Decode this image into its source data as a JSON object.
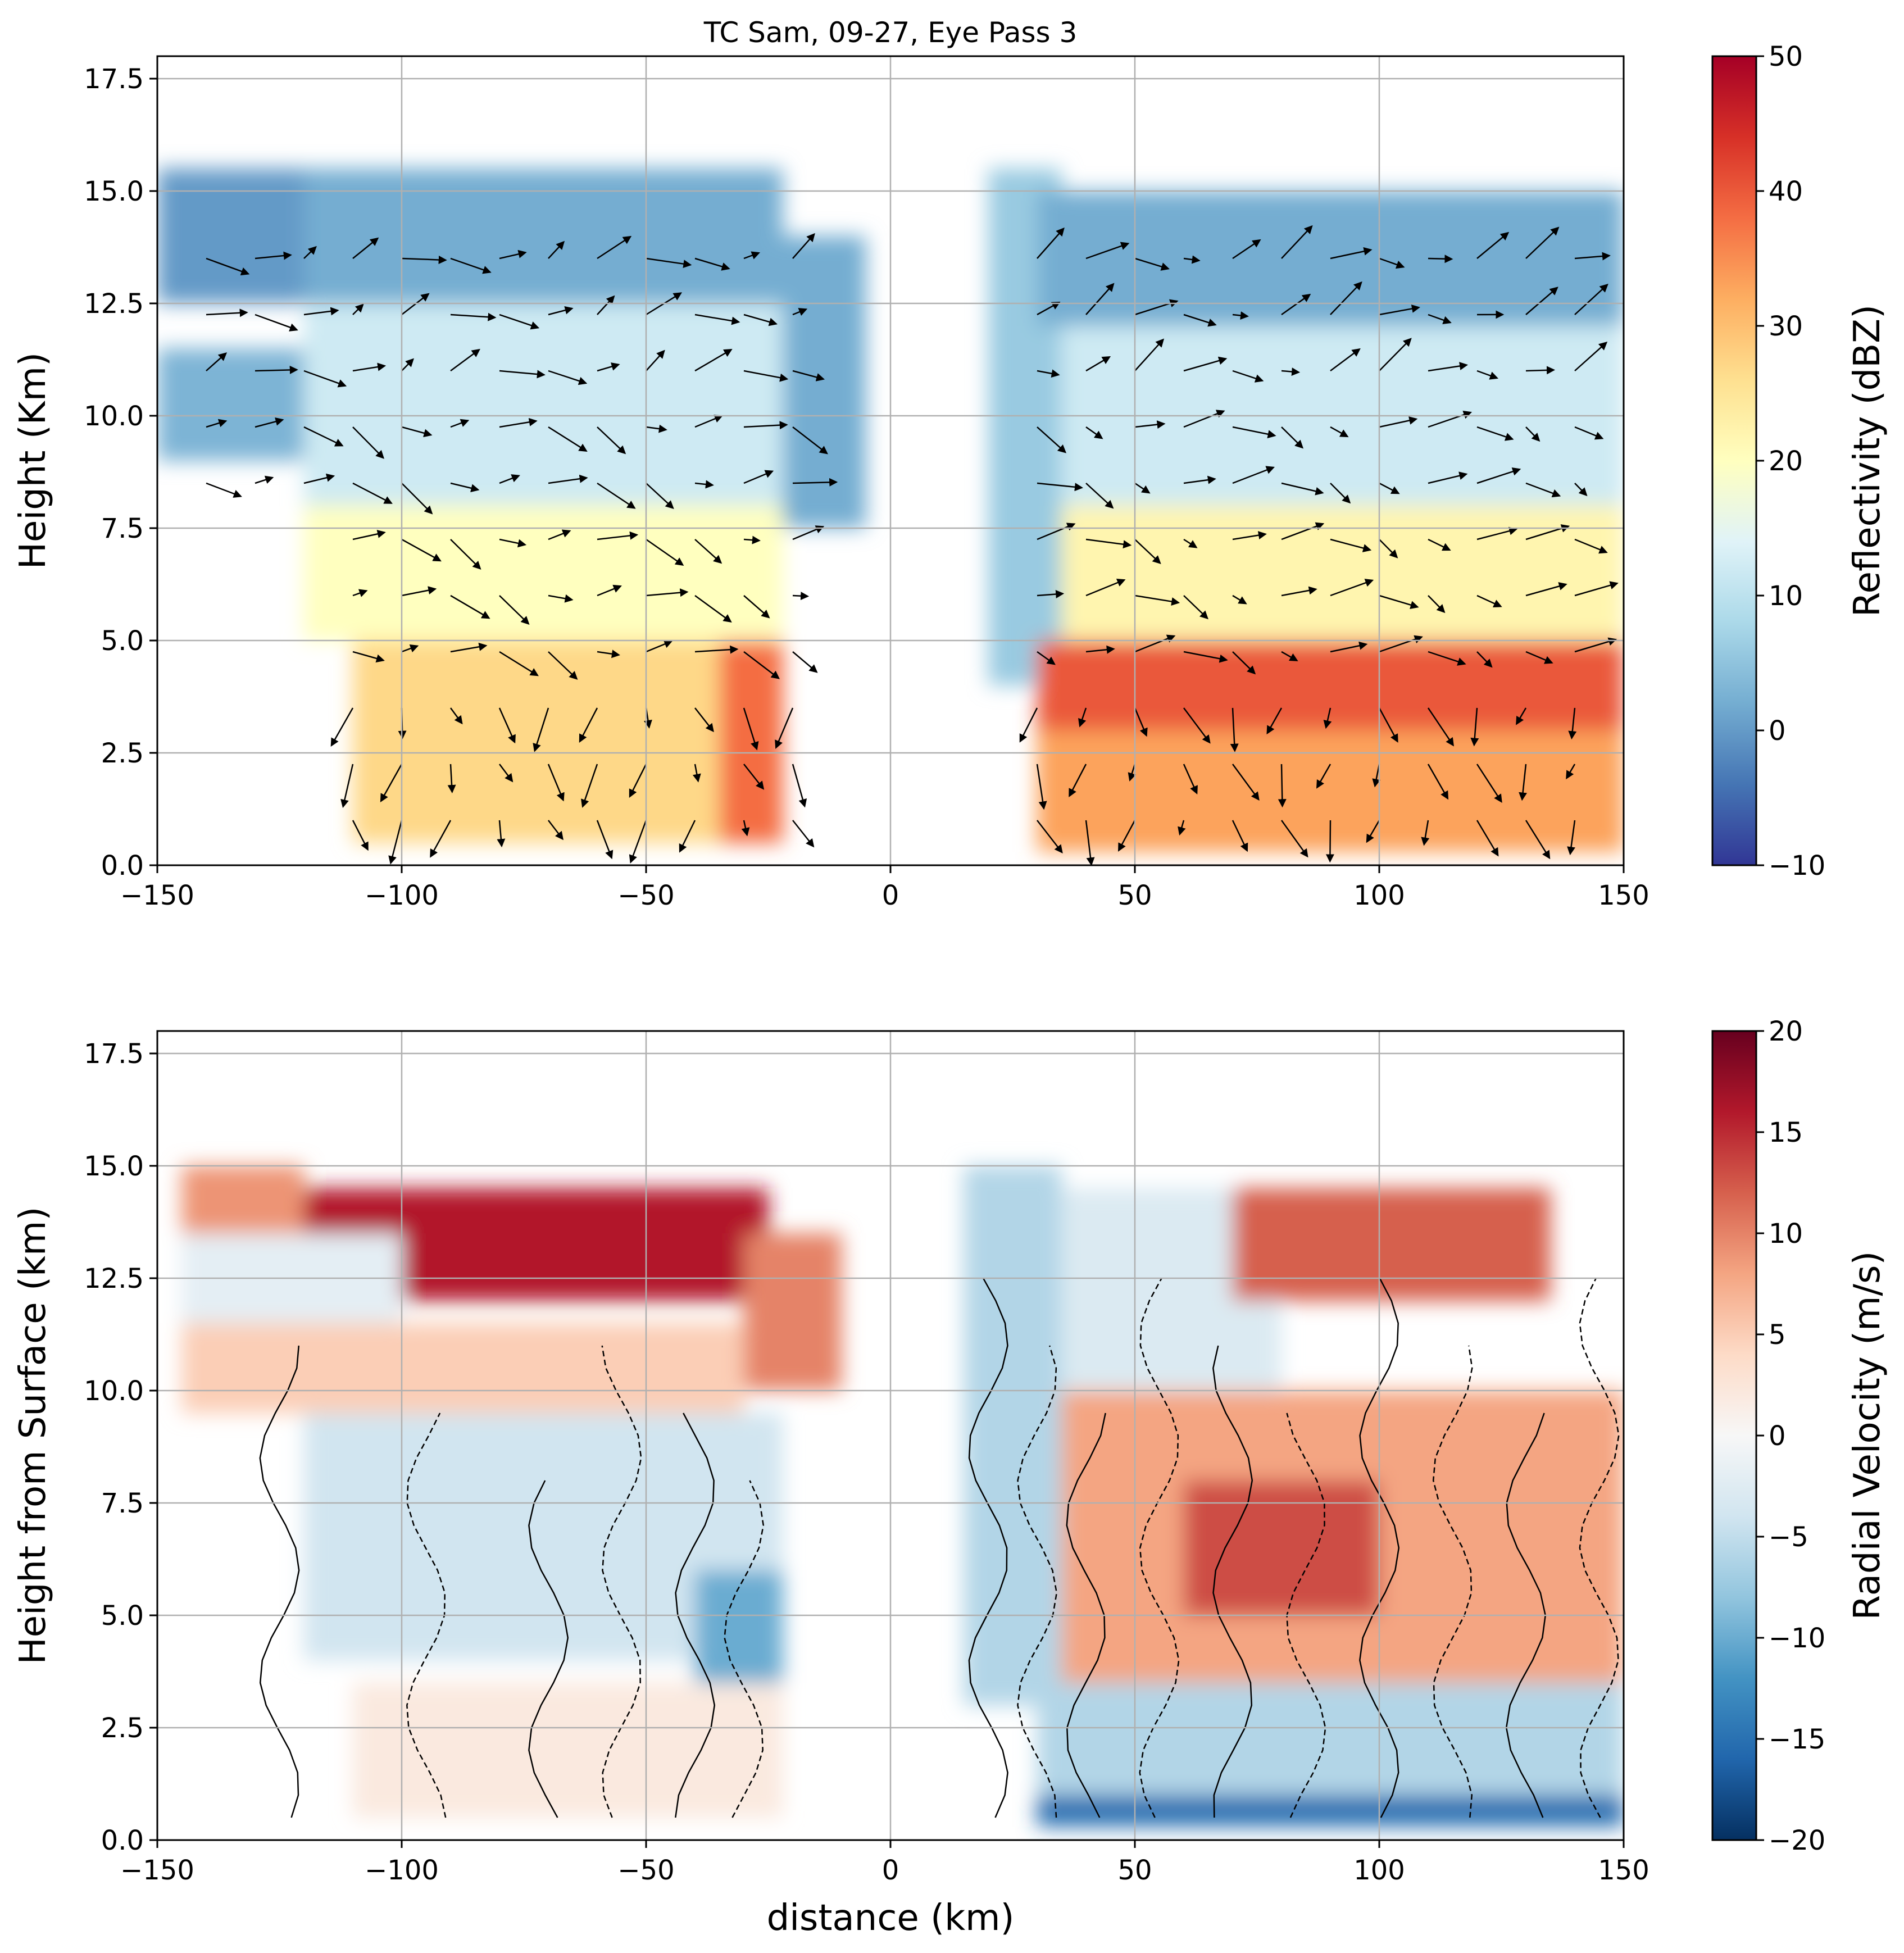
{
  "chart_data": [
    {
      "type": "heatmap",
      "title": "TC Sam, 09-27, Eye Pass 3",
      "xlabel": "",
      "ylabel": "Height (Km)",
      "xlim": [
        -150,
        150
      ],
      "ylim": [
        0,
        18
      ],
      "xticks": [
        -150,
        -100,
        -50,
        0,
        50,
        100,
        150
      ],
      "xtick_labels": [
        "−150",
        "−100",
        "−50",
        "0",
        "50",
        "100",
        "150"
      ],
      "yticks": [
        0.0,
        2.5,
        5.0,
        7.5,
        10.0,
        12.5,
        15.0,
        17.5
      ],
      "ytick_labels": [
        "0.0",
        "2.5",
        "5.0",
        "7.5",
        "10.0",
        "12.5",
        "15.0",
        "17.5"
      ],
      "grid": true,
      "colorbar": {
        "label": "Reflectivity (dBZ)",
        "colormap": "RdYlBu_r",
        "range": [
          -10,
          50
        ],
        "ticks": [
          -10,
          0,
          10,
          20,
          30,
          40,
          50
        ],
        "tick_labels": [
          "−10",
          "0",
          "10",
          "20",
          "30",
          "40",
          "50"
        ],
        "position": "right"
      },
      "overlay": "wind vectors",
      "field_description": "Eyewall towers on both sides with eye free of echo near x=0; max reflectivity ~45 dBZ below 5 km on the right side, anvil tops near 15 km",
      "regions": [
        {
          "x": [
            -150,
            -120
          ],
          "y": [
            12.5,
            15.5
          ],
          "value": 0
        },
        {
          "x": [
            -150,
            -120
          ],
          "y": [
            9.0,
            11.5
          ],
          "value": 3
        },
        {
          "x": [
            -120,
            -22
          ],
          "y": [
            12.5,
            15.5
          ],
          "value": 2
        },
        {
          "x": [
            -120,
            -22
          ],
          "y": [
            8.0,
            12.5
          ],
          "value": 12
        },
        {
          "x": [
            -120,
            -22
          ],
          "y": [
            5.0,
            8.0
          ],
          "value": 20
        },
        {
          "x": [
            -110,
            -22
          ],
          "y": [
            0.5,
            5.0
          ],
          "value": 27
        },
        {
          "x": [
            -35,
            -22
          ],
          "y": [
            0.5,
            5.0
          ],
          "value": 38
        },
        {
          "x": [
            -22,
            -5
          ],
          "y": [
            7.5,
            14.0
          ],
          "value": 2
        },
        {
          "x": [
            20,
            35
          ],
          "y": [
            4.0,
            15.5
          ],
          "value": 6
        },
        {
          "x": [
            30,
            150
          ],
          "y": [
            12.0,
            15.0
          ],
          "value": 2
        },
        {
          "x": [
            35,
            150
          ],
          "y": [
            8.0,
            12.0
          ],
          "value": 12
        },
        {
          "x": [
            35,
            150
          ],
          "y": [
            5.0,
            8.0
          ],
          "value": 22
        },
        {
          "x": [
            30,
            150
          ],
          "y": [
            3.0,
            5.0
          ],
          "value": 40
        },
        {
          "x": [
            30,
            150
          ],
          "y": [
            0.3,
            3.0
          ],
          "value": 33
        }
      ]
    },
    {
      "type": "heatmap",
      "title": "",
      "xlabel": "distance (km)",
      "ylabel": "Height from Surface (km)",
      "xlim": [
        -150,
        150
      ],
      "ylim": [
        0,
        18
      ],
      "xticks": [
        -150,
        -100,
        -50,
        0,
        50,
        100,
        150
      ],
      "xtick_labels": [
        "−150",
        "−100",
        "−50",
        "0",
        "50",
        "100",
        "150"
      ],
      "yticks": [
        0.0,
        2.5,
        5.0,
        7.5,
        10.0,
        12.5,
        15.0,
        17.5
      ],
      "ytick_labels": [
        "0.0",
        "2.5",
        "5.0",
        "7.5",
        "10.0",
        "12.5",
        "15.0",
        "17.5"
      ],
      "grid": true,
      "colorbar": {
        "label": "Radial Velocity (m/s)",
        "colormap": "RdBu_r",
        "range": [
          -20,
          20
        ],
        "ticks": [
          -20,
          -15,
          -10,
          -5,
          0,
          5,
          10,
          15,
          20
        ],
        "tick_labels": [
          "−20",
          "−15",
          "−10",
          "−5",
          "0",
          "5",
          "10",
          "15",
          "20"
        ],
        "position": "right"
      },
      "overlay": "vertical velocity contours (solid positive, dashed negative)",
      "field_description": "Strong outflow (~15-20 m/s) near 12-14 km on the left; inflow (~-15 m/s) in the lowest 1 km on the right; outflow ~8-10 m/s at mid-levels on the right",
      "regions": [
        {
          "x": [
            -145,
            -120
          ],
          "y": [
            13.5,
            15.0
          ],
          "value": 9
        },
        {
          "x": [
            -120,
            -25
          ],
          "y": [
            12.0,
            14.5
          ],
          "value": 16
        },
        {
          "x": [
            -145,
            -100
          ],
          "y": [
            11.5,
            13.5
          ],
          "value": -2
        },
        {
          "x": [
            -145,
            -30
          ],
          "y": [
            9.5,
            11.5
          ],
          "value": 5
        },
        {
          "x": [
            -30,
            -10
          ],
          "y": [
            10.0,
            13.5
          ],
          "value": 10
        },
        {
          "x": [
            -120,
            -22
          ],
          "y": [
            4.0,
            9.5
          ],
          "value": -4
        },
        {
          "x": [
            -40,
            -22
          ],
          "y": [
            3.5,
            6.0
          ],
          "value": -10
        },
        {
          "x": [
            -110,
            -22
          ],
          "y": [
            0.5,
            3.5
          ],
          "value": 2
        },
        {
          "x": [
            15,
            35
          ],
          "y": [
            3.0,
            15.0
          ],
          "value": -6
        },
        {
          "x": [
            35,
            80
          ],
          "y": [
            8.0,
            14.5
          ],
          "value": -3
        },
        {
          "x": [
            70,
            135
          ],
          "y": [
            12.0,
            14.5
          ],
          "value": 12
        },
        {
          "x": [
            35,
            150
          ],
          "y": [
            3.5,
            10.0
          ],
          "value": 8
        },
        {
          "x": [
            60,
            100
          ],
          "y": [
            5.0,
            8.0
          ],
          "value": 13
        },
        {
          "x": [
            30,
            150
          ],
          "y": [
            1.0,
            3.5
          ],
          "value": -6
        },
        {
          "x": [
            30,
            150
          ],
          "y": [
            0.3,
            1.0
          ],
          "value": -15
        }
      ]
    }
  ]
}
